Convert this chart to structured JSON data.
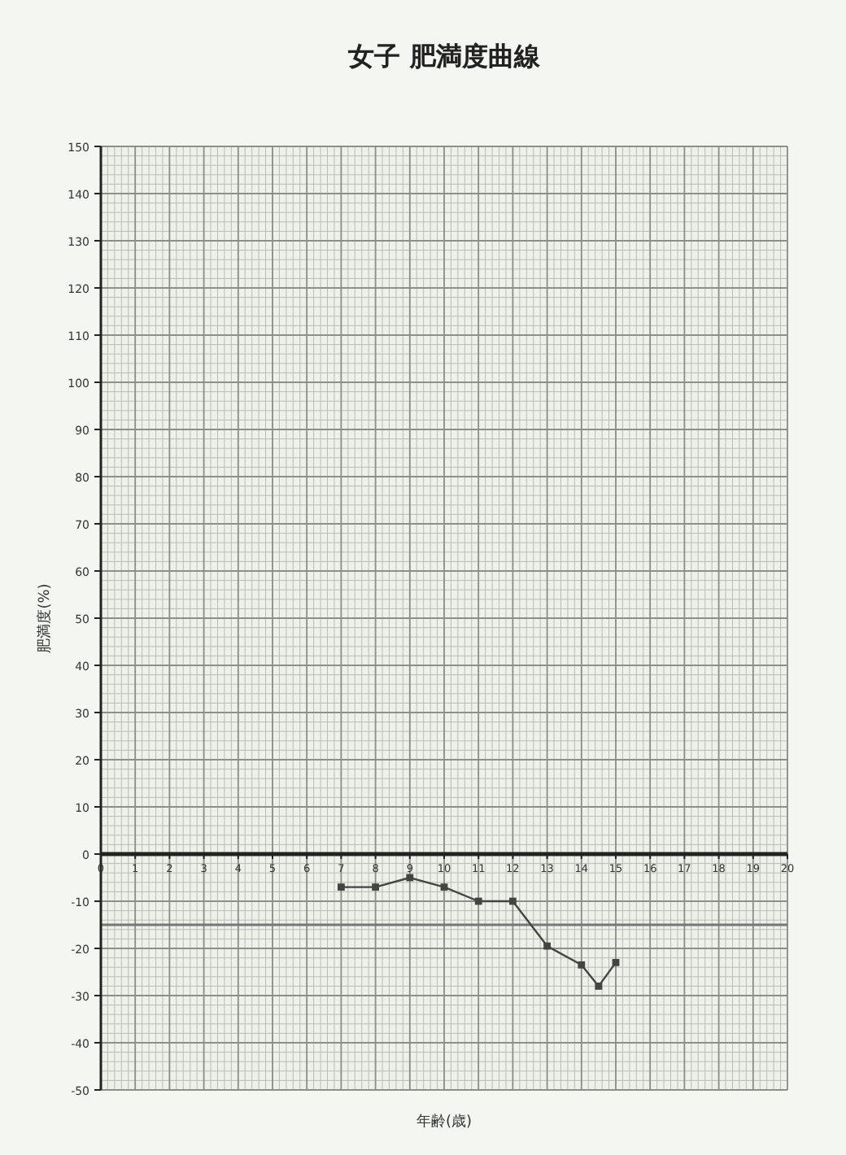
{
  "chart_data": {
    "type": "line",
    "title": "女子 肥満度曲線",
    "xlabel": "年齢(歳)",
    "ylabel": "肥満度(%)",
    "x": [
      7,
      8,
      9,
      10,
      11,
      12,
      13,
      14,
      14.5,
      15
    ],
    "series": [
      {
        "color": "#444444",
        "values": [
          -7,
          -7,
          -5,
          -7,
          -10,
          -10,
          -19.5,
          -23.5,
          -28,
          -23
        ]
      }
    ],
    "xlim": [
      0,
      20
    ],
    "xticks": [
      0,
      1,
      2,
      3,
      4,
      5,
      6,
      7,
      8,
      9,
      10,
      11,
      12,
      13,
      14,
      15,
      16,
      17,
      18,
      19,
      20
    ],
    "ylim": [
      -50,
      150
    ],
    "yticks": [
      -50,
      -40,
      -30,
      -20,
      -10,
      0,
      10,
      20,
      30,
      40,
      50,
      60,
      70,
      80,
      90,
      100,
      110,
      120,
      130,
      140,
      150
    ],
    "ref_lines": [
      {
        "axis": "y",
        "value": -15,
        "color": "#777777"
      }
    ],
    "grid": true,
    "marker": "square",
    "line_style": "solid"
  }
}
